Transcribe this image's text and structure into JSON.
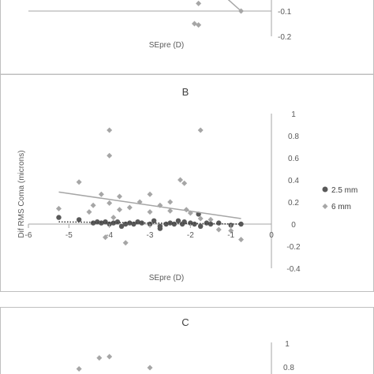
{
  "colors": {
    "series_2_5mm": "#595959",
    "series_6mm": "#a6a6a6",
    "frame": "#bfbfbf",
    "axis": "#a6a6a6"
  },
  "chart_data": [
    {
      "id": "top-panel",
      "type": "scatter",
      "title": "",
      "xlabel": "SEpre (D)",
      "ylabel": "",
      "xlim": [
        -6,
        0
      ],
      "ylim": [
        -0.2,
        0.2
      ],
      "y_ticks": [
        "-0.1",
        "-0.2"
      ],
      "grid": false,
      "series": [
        {
          "marker": "diamond",
          "points": [
            [
              -1.9,
              -0.15
            ],
            [
              -1.8,
              -0.155
            ],
            [
              -1.8,
              -0.07
            ],
            [
              -0.75,
              -0.1
            ]
          ]
        }
      ],
      "trendline": {
        "x": [
          -1.1,
          -0.75
        ],
        "y": [
          -0.05,
          -0.1
        ],
        "style": "solid"
      }
    },
    {
      "id": "panel-b",
      "type": "scatter",
      "title": "B",
      "xlabel": "SEpre (D)",
      "ylabel": "Dif RMS Coma (microns)",
      "xlim": [
        -6,
        0
      ],
      "ylim": [
        -0.4,
        1
      ],
      "x_ticks": [
        "-6",
        "-5",
        "-4",
        "-3",
        "-2",
        "-1",
        "0"
      ],
      "y_ticks": [
        "1",
        "0.8",
        "0.6",
        "0.4",
        "0.2",
        "0",
        "-0.2",
        "-0.4"
      ],
      "grid": false,
      "legend_position": "right",
      "series": [
        {
          "name": "2.5 mm",
          "marker": "circle",
          "points": [
            [
              -5.25,
              0.06
            ],
            [
              -4.75,
              0.04
            ],
            [
              -4.4,
              0.01
            ],
            [
              -4.3,
              0.02
            ],
            [
              -4.2,
              0.01
            ],
            [
              -4.1,
              0.02
            ],
            [
              -4.0,
              0.0
            ],
            [
              -3.9,
              0.01
            ],
            [
              -3.8,
              0.02
            ],
            [
              -3.7,
              -0.02
            ],
            [
              -3.6,
              0.0
            ],
            [
              -3.5,
              0.01
            ],
            [
              -3.4,
              0.0
            ],
            [
              -3.3,
              0.02
            ],
            [
              -3.2,
              0.01
            ],
            [
              -3.0,
              0.0
            ],
            [
              -2.9,
              0.03
            ],
            [
              -2.75,
              -0.02
            ],
            [
              -2.75,
              -0.04
            ],
            [
              -2.6,
              0.0
            ],
            [
              -2.5,
              0.01
            ],
            [
              -2.4,
              0.0
            ],
            [
              -2.3,
              0.03
            ],
            [
              -2.2,
              0.0
            ],
            [
              -2.15,
              0.02
            ],
            [
              -2.0,
              0.01
            ],
            [
              -1.9,
              0.0
            ],
            [
              -1.8,
              0.09
            ],
            [
              -1.75,
              -0.02
            ],
            [
              -1.6,
              0.01
            ],
            [
              -1.5,
              0.0
            ],
            [
              -1.3,
              0.01
            ],
            [
              -1.0,
              -0.01
            ],
            [
              -0.75,
              0.0
            ]
          ]
        },
        {
          "name": "6 mm",
          "marker": "diamond",
          "points": [
            [
              -5.25,
              0.14
            ],
            [
              -4.75,
              0.38
            ],
            [
              -4.5,
              0.11
            ],
            [
              -4.4,
              0.17
            ],
            [
              -4.2,
              0.27
            ],
            [
              -4.1,
              -0.12
            ],
            [
              -4.0,
              0.85
            ],
            [
              -4.0,
              0.62
            ],
            [
              -4.0,
              0.19
            ],
            [
              -3.9,
              0.06
            ],
            [
              -3.75,
              0.25
            ],
            [
              -3.75,
              0.13
            ],
            [
              -3.6,
              -0.17
            ],
            [
              -3.5,
              0.15
            ],
            [
              -3.25,
              0.2
            ],
            [
              -3.0,
              0.27
            ],
            [
              -3.0,
              0.11
            ],
            [
              -2.75,
              0.17
            ],
            [
              -2.75,
              -0.02
            ],
            [
              -2.5,
              0.12
            ],
            [
              -2.5,
              0.2
            ],
            [
              -2.25,
              0.4
            ],
            [
              -2.15,
              0.37
            ],
            [
              -2.1,
              0.13
            ],
            [
              -2.0,
              0.1
            ],
            [
              -1.75,
              0.85
            ],
            [
              -1.75,
              0.05
            ],
            [
              -1.5,
              0.04
            ],
            [
              -1.3,
              -0.05
            ],
            [
              -1.0,
              -0.06
            ],
            [
              -0.75,
              -0.14
            ]
          ]
        }
      ],
      "trendlines": [
        {
          "series": "6 mm",
          "style": "solid",
          "x": [
            -5.25,
            -0.75
          ],
          "y": [
            0.29,
            0.05
          ]
        },
        {
          "series": "2.5 mm",
          "style": "dotted",
          "x": [
            -5.25,
            -0.75
          ],
          "y": [
            0.02,
            0.0
          ]
        }
      ]
    },
    {
      "id": "panel-c",
      "type": "scatter",
      "title": "C",
      "xlabel": "",
      "ylabel": "",
      "xlim": [
        -6,
        0
      ],
      "ylim": [
        -0.4,
        1
      ],
      "y_ticks": [
        "1",
        "0.8"
      ],
      "grid": false,
      "series": [
        {
          "marker": "diamond",
          "points": [
            [
              -4.75,
              0.79
            ],
            [
              -4.25,
              0.88
            ],
            [
              -4.0,
              0.89
            ],
            [
              -3.0,
              0.8
            ]
          ]
        }
      ]
    }
  ]
}
